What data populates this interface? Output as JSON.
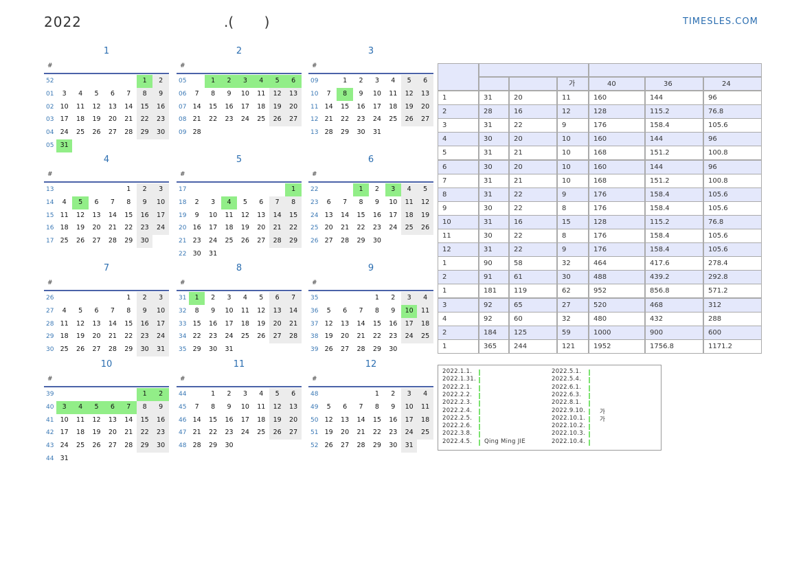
{
  "header": {
    "title": "2022",
    "subtitle": ".(       )",
    "site": "TIMESLES.COM"
  },
  "calendar": {
    "months": [
      {
        "title": "1",
        "week_header": "#",
        "highlighted": [
          1,
          31
        ],
        "weeks": [
          {
            "no": "52",
            "days": [
              null,
              null,
              null,
              null,
              null,
              1,
              2
            ]
          },
          {
            "no": "01",
            "days": [
              3,
              4,
              5,
              6,
              7,
              8,
              9
            ]
          },
          {
            "no": "02",
            "days": [
              10,
              11,
              12,
              13,
              14,
              15,
              16
            ]
          },
          {
            "no": "03",
            "days": [
              17,
              18,
              19,
              20,
              21,
              22,
              23
            ]
          },
          {
            "no": "04",
            "days": [
              24,
              25,
              26,
              27,
              28,
              29,
              30
            ]
          },
          {
            "no": "05",
            "days": [
              31,
              null,
              null,
              null,
              null,
              null,
              null
            ]
          }
        ]
      },
      {
        "title": "2",
        "week_header": "#",
        "highlighted": [
          1,
          2,
          3,
          4,
          5,
          6
        ],
        "weeks": [
          {
            "no": "05",
            "days": [
              null,
              1,
              2,
              3,
              4,
              5,
              6
            ]
          },
          {
            "no": "06",
            "days": [
              7,
              8,
              9,
              10,
              11,
              12,
              13
            ]
          },
          {
            "no": "07",
            "days": [
              14,
              15,
              16,
              17,
              18,
              19,
              20
            ]
          },
          {
            "no": "08",
            "days": [
              21,
              22,
              23,
              24,
              25,
              26,
              27
            ]
          },
          {
            "no": "09",
            "days": [
              28,
              null,
              null,
              null,
              null,
              null,
              null
            ]
          }
        ]
      },
      {
        "title": "3",
        "week_header": "#",
        "highlighted": [
          8
        ],
        "weeks": [
          {
            "no": "09",
            "days": [
              null,
              1,
              2,
              3,
              4,
              5,
              6
            ]
          },
          {
            "no": "10",
            "days": [
              7,
              8,
              9,
              10,
              11,
              12,
              13
            ]
          },
          {
            "no": "11",
            "days": [
              14,
              15,
              16,
              17,
              18,
              19,
              20
            ]
          },
          {
            "no": "12",
            "days": [
              21,
              22,
              23,
              24,
              25,
              26,
              27
            ]
          },
          {
            "no": "13",
            "days": [
              28,
              29,
              30,
              31,
              null,
              null,
              null
            ]
          }
        ]
      },
      {
        "title": "4",
        "week_header": "#",
        "highlighted": [
          5
        ],
        "weeks": [
          {
            "no": "13",
            "days": [
              null,
              null,
              null,
              null,
              1,
              2,
              3
            ]
          },
          {
            "no": "14",
            "days": [
              4,
              5,
              6,
              7,
              8,
              9,
              10
            ]
          },
          {
            "no": "15",
            "days": [
              11,
              12,
              13,
              14,
              15,
              16,
              17
            ]
          },
          {
            "no": "16",
            "days": [
              18,
              19,
              20,
              21,
              22,
              23,
              24
            ]
          },
          {
            "no": "17",
            "days": [
              25,
              26,
              27,
              28,
              29,
              30,
              null
            ]
          }
        ]
      },
      {
        "title": "5",
        "week_header": "#",
        "highlighted": [
          1,
          4
        ],
        "weeks": [
          {
            "no": "17",
            "days": [
              null,
              null,
              null,
              null,
              null,
              null,
              1
            ]
          },
          {
            "no": "18",
            "days": [
              2,
              3,
              4,
              5,
              6,
              7,
              8
            ]
          },
          {
            "no": "19",
            "days": [
              9,
              10,
              11,
              12,
              13,
              14,
              15
            ]
          },
          {
            "no": "20",
            "days": [
              16,
              17,
              18,
              19,
              20,
              21,
              22
            ]
          },
          {
            "no": "21",
            "days": [
              23,
              24,
              25,
              26,
              27,
              28,
              29
            ]
          },
          {
            "no": "22",
            "days": [
              30,
              31,
              null,
              null,
              null,
              null,
              null
            ]
          }
        ]
      },
      {
        "title": "6",
        "week_header": "#",
        "highlighted": [
          1,
          3
        ],
        "weeks": [
          {
            "no": "22",
            "days": [
              null,
              null,
              1,
              2,
              3,
              4,
              5
            ]
          },
          {
            "no": "23",
            "days": [
              6,
              7,
              8,
              9,
              10,
              11,
              12
            ]
          },
          {
            "no": "24",
            "days": [
              13,
              14,
              15,
              16,
              17,
              18,
              19
            ]
          },
          {
            "no": "25",
            "days": [
              20,
              21,
              22,
              23,
              24,
              25,
              26
            ]
          },
          {
            "no": "26",
            "days": [
              27,
              28,
              29,
              30,
              null,
              null,
              null
            ]
          }
        ]
      },
      {
        "title": "7",
        "week_header": "#",
        "highlighted": [],
        "weeks": [
          {
            "no": "26",
            "days": [
              null,
              null,
              null,
              null,
              1,
              2,
              3
            ]
          },
          {
            "no": "27",
            "days": [
              4,
              5,
              6,
              7,
              8,
              9,
              10
            ]
          },
          {
            "no": "28",
            "days": [
              11,
              12,
              13,
              14,
              15,
              16,
              17
            ]
          },
          {
            "no": "29",
            "days": [
              18,
              19,
              20,
              21,
              22,
              23,
              24
            ]
          },
          {
            "no": "30",
            "days": [
              25,
              26,
              27,
              28,
              29,
              30,
              31
            ]
          }
        ]
      },
      {
        "title": "8",
        "week_header": "#",
        "highlighted": [
          1
        ],
        "weeks": [
          {
            "no": "31",
            "days": [
              1,
              2,
              3,
              4,
              5,
              6,
              7
            ]
          },
          {
            "no": "32",
            "days": [
              8,
              9,
              10,
              11,
              12,
              13,
              14
            ]
          },
          {
            "no": "33",
            "days": [
              15,
              16,
              17,
              18,
              19,
              20,
              21
            ]
          },
          {
            "no": "34",
            "days": [
              22,
              23,
              24,
              25,
              26,
              27,
              28
            ]
          },
          {
            "no": "35",
            "days": [
              29,
              30,
              31,
              null,
              null,
              null,
              null
            ]
          }
        ]
      },
      {
        "title": "9",
        "week_header": "#",
        "highlighted": [
          10
        ],
        "weeks": [
          {
            "no": "35",
            "days": [
              null,
              null,
              null,
              1,
              2,
              3,
              4
            ]
          },
          {
            "no": "36",
            "days": [
              5,
              6,
              7,
              8,
              9,
              10,
              11
            ]
          },
          {
            "no": "37",
            "days": [
              12,
              13,
              14,
              15,
              16,
              17,
              18
            ]
          },
          {
            "no": "38",
            "days": [
              19,
              20,
              21,
              22,
              23,
              24,
              25
            ]
          },
          {
            "no": "39",
            "days": [
              26,
              27,
              28,
              29,
              30,
              null,
              null
            ]
          }
        ]
      },
      {
        "title": "10",
        "week_header": "#",
        "highlighted": [
          1,
          2,
          3,
          4,
          5,
          6,
          7
        ],
        "weeks": [
          {
            "no": "39",
            "days": [
              null,
              null,
              null,
              null,
              null,
              1,
              2
            ]
          },
          {
            "no": "40",
            "days": [
              3,
              4,
              5,
              6,
              7,
              8,
              9
            ]
          },
          {
            "no": "41",
            "days": [
              10,
              11,
              12,
              13,
              14,
              15,
              16
            ]
          },
          {
            "no": "42",
            "days": [
              17,
              18,
              19,
              20,
              21,
              22,
              23
            ]
          },
          {
            "no": "43",
            "days": [
              24,
              25,
              26,
              27,
              28,
              29,
              30
            ]
          },
          {
            "no": "44",
            "days": [
              31,
              null,
              null,
              null,
              null,
              null,
              null
            ]
          }
        ]
      },
      {
        "title": "11",
        "week_header": "#",
        "highlighted": [],
        "weeks": [
          {
            "no": "44",
            "days": [
              null,
              1,
              2,
              3,
              4,
              5,
              6
            ]
          },
          {
            "no": "45",
            "days": [
              7,
              8,
              9,
              10,
              11,
              12,
              13
            ]
          },
          {
            "no": "46",
            "days": [
              14,
              15,
              16,
              17,
              18,
              19,
              20
            ]
          },
          {
            "no": "47",
            "days": [
              21,
              22,
              23,
              24,
              25,
              26,
              27
            ]
          },
          {
            "no": "48",
            "days": [
              28,
              29,
              30,
              null,
              null,
              null,
              null
            ]
          }
        ]
      },
      {
        "title": "12",
        "week_header": "#",
        "highlighted": [],
        "weeks": [
          {
            "no": "48",
            "days": [
              null,
              null,
              null,
              1,
              2,
              3,
              4
            ]
          },
          {
            "no": "49",
            "days": [
              5,
              6,
              7,
              8,
              9,
              10,
              11
            ]
          },
          {
            "no": "50",
            "days": [
              12,
              13,
              14,
              15,
              16,
              17,
              18
            ]
          },
          {
            "no": "51",
            "days": [
              19,
              20,
              21,
              22,
              23,
              24,
              25
            ]
          },
          {
            "no": "52",
            "days": [
              26,
              27,
              28,
              29,
              30,
              31,
              null
            ]
          }
        ]
      }
    ]
  },
  "summary_table": {
    "subheader": [
      "가",
      "40",
      "36",
      "24"
    ],
    "rows": [
      [
        "1",
        "31",
        "20",
        "11",
        "160",
        "144",
        "96"
      ],
      [
        "2",
        "28",
        "16",
        "12",
        "128",
        "115.2",
        "76.8"
      ],
      [
        "3",
        "31",
        "22",
        "9",
        "176",
        "158.4",
        "105.6"
      ],
      [
        "4",
        "30",
        "20",
        "10",
        "160",
        "144",
        "96"
      ],
      [
        "5",
        "31",
        "21",
        "10",
        "168",
        "151.2",
        "100.8"
      ],
      [
        "6",
        "30",
        "20",
        "10",
        "160",
        "144",
        "96"
      ],
      [
        "7",
        "31",
        "21",
        "10",
        "168",
        "151.2",
        "100.8"
      ],
      [
        "8",
        "31",
        "22",
        "9",
        "176",
        "158.4",
        "105.6"
      ],
      [
        "9",
        "30",
        "22",
        "8",
        "176",
        "158.4",
        "105.6"
      ],
      [
        "10",
        "31",
        "16",
        "15",
        "128",
        "115.2",
        "76.8"
      ],
      [
        "11",
        "30",
        "22",
        "8",
        "176",
        "158.4",
        "105.6"
      ],
      [
        "12",
        "31",
        "22",
        "9",
        "176",
        "158.4",
        "105.6"
      ],
      [
        "1",
        "90",
        "58",
        "32",
        "464",
        "417.6",
        "278.4"
      ],
      [
        "2",
        "91",
        "61",
        "30",
        "488",
        "439.2",
        "292.8"
      ],
      [
        "1",
        "181",
        "119",
        "62",
        "952",
        "856.8",
        "571.2"
      ],
      [
        "3",
        "92",
        "65",
        "27",
        "520",
        "468",
        "312"
      ],
      [
        "4",
        "92",
        "60",
        "32",
        "480",
        "432",
        "288"
      ],
      [
        "2",
        "184",
        "125",
        "59",
        "1000",
        "900",
        "600"
      ],
      [
        "1",
        "365",
        "244",
        "121",
        "1952",
        "1756.8",
        "1171.2"
      ]
    ]
  },
  "notes": {
    "left": [
      {
        "date": "2022.1.1."
      },
      {
        "date": "2022.1.31."
      },
      {
        "date": "2022.2.1."
      },
      {
        "date": "2022.2.2."
      },
      {
        "date": "2022.2.3."
      },
      {
        "date": "2022.2.4."
      },
      {
        "date": "2022.2.5."
      },
      {
        "date": "2022.2.6."
      },
      {
        "date": "2022.3.8."
      },
      {
        "date": "2022.4.5.",
        "text": "Qing Ming JIE"
      }
    ],
    "right": [
      {
        "date": "2022.5.1."
      },
      {
        "date": "2022.5.4."
      },
      {
        "date": "2022.6.1."
      },
      {
        "date": "2022.6.3."
      },
      {
        "date": "2022.8.1."
      },
      {
        "date": "2022.9.10.",
        "text": "가"
      },
      {
        "date": "2022.10.1.",
        "text": "가"
      },
      {
        "date": "2022.10.2."
      },
      {
        "date": "2022.10.3."
      },
      {
        "date": "2022.10.4."
      }
    ]
  }
}
